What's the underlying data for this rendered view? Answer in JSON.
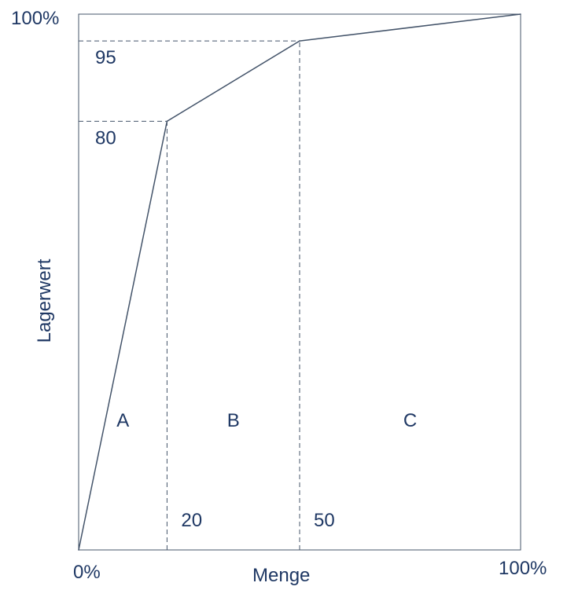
{
  "chart_data": {
    "type": "line",
    "title": "",
    "xlabel": "Menge",
    "ylabel": "Lagerwert",
    "xlim": [
      0,
      100
    ],
    "ylim": [
      0,
      100
    ],
    "grid": false,
    "series": [
      {
        "x": [
          0,
          20,
          50,
          100
        ],
        "y": [
          0,
          80,
          95,
          100
        ]
      }
    ],
    "corner_labels": {
      "y_top": "100%",
      "origin": "0%",
      "x_right": "100%"
    },
    "x_marks": [
      {
        "x": 20,
        "label": "20"
      },
      {
        "x": 50,
        "label": "50"
      }
    ],
    "y_marks": [
      {
        "y": 80,
        "label": "80"
      },
      {
        "y": 95,
        "label": "95"
      }
    ],
    "regions": [
      {
        "label": "A",
        "x_from": 0,
        "x_to": 20
      },
      {
        "label": "B",
        "x_from": 20,
        "x_to": 50
      },
      {
        "label": "C",
        "x_from": 50,
        "x_to": 100
      }
    ],
    "colors": {
      "text": "#1f3864",
      "line": "#44546a"
    }
  }
}
